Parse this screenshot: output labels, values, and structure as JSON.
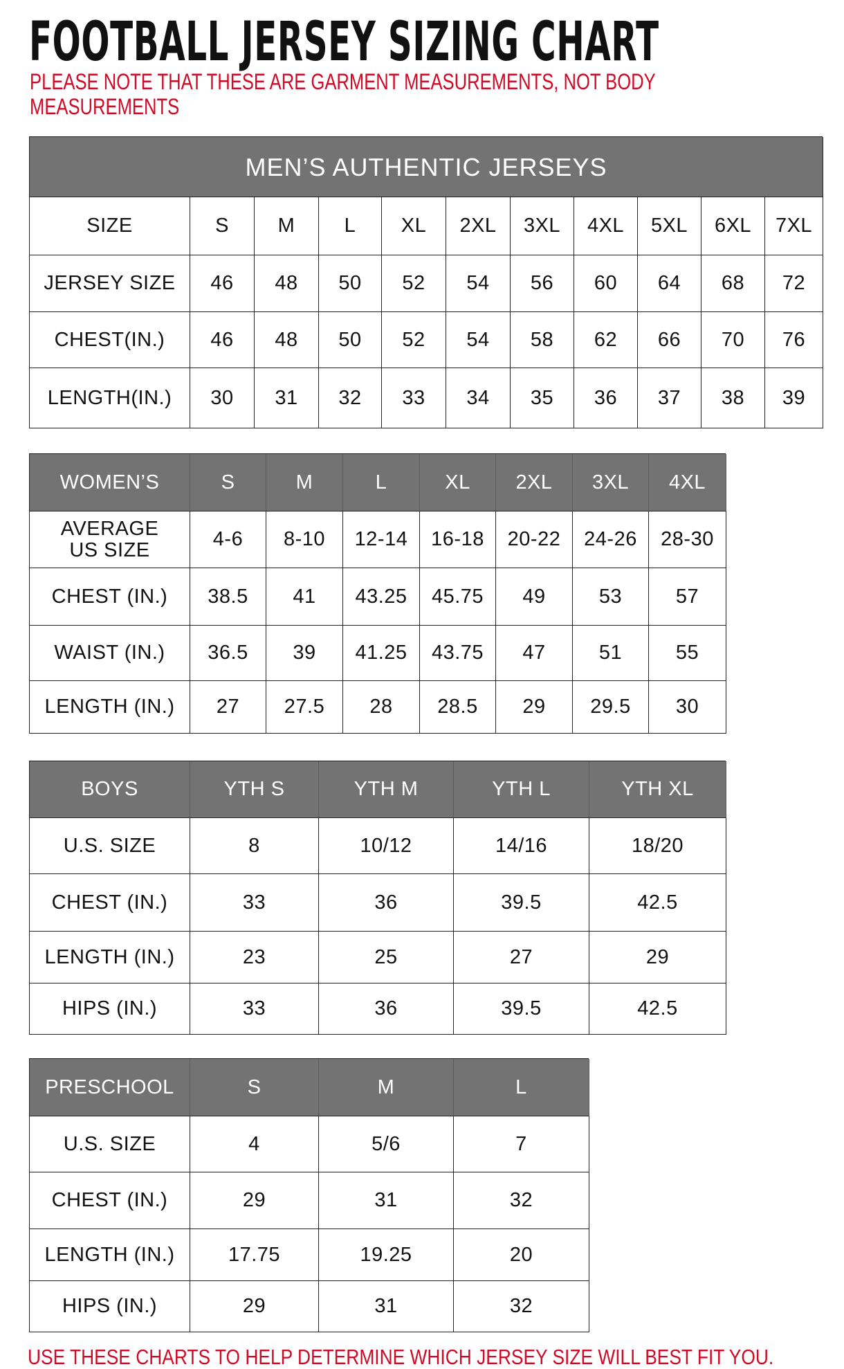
{
  "title": "FOOTBALL JERSEY SIZING CHART",
  "note": "PLEASE NOTE THAT THESE ARE GARMENT MEASUREMENTS, NOT BODY MEASUREMENTS",
  "footer": "USE THESE CHARTS TO HELP DETERMINE WHICH JERSEY SIZE WILL BEST FIT YOU.",
  "colors": {
    "header_gray": "#737373",
    "note_red": "#cf0a26"
  },
  "tables": [
    {
      "banner": "MEN’S AUTHENTIC JERSEYS",
      "header": [
        "SIZE",
        "S",
        "M",
        "L",
        "XL",
        "2XL",
        "3XL",
        "4XL",
        "5XL",
        "6XL",
        "7XL"
      ],
      "rows": [
        [
          "JERSEY SIZE",
          "46",
          "48",
          "50",
          "52",
          "54",
          "56",
          "60",
          "64",
          "68",
          "72"
        ],
        [
          "CHEST(IN.)",
          "46",
          "48",
          "50",
          "52",
          "54",
          "58",
          "62",
          "66",
          "70",
          "76"
        ],
        [
          "LENGTH(IN.)",
          "30",
          "31",
          "32",
          "33",
          "34",
          "35",
          "36",
          "37",
          "38",
          "39"
        ]
      ]
    },
    {
      "header": [
        "WOMEN’S",
        "S",
        "M",
        "L",
        "XL",
        "2XL",
        "3XL",
        "4XL"
      ],
      "rows": [
        [
          "AVERAGE\nUS SIZE",
          "4-6",
          "8-10",
          "12-14",
          "16-18",
          "20-22",
          "24-26",
          "28-30"
        ],
        [
          "CHEST (IN.)",
          "38.5",
          "41",
          "43.25",
          "45.75",
          "49",
          "53",
          "57"
        ],
        [
          "WAIST (IN.)",
          "36.5",
          "39",
          "41.25",
          "43.75",
          "47",
          "51",
          "55"
        ],
        [
          "LENGTH (IN.)",
          "27",
          "27.5",
          "28",
          "28.5",
          "29",
          "29.5",
          "30"
        ]
      ]
    },
    {
      "header": [
        "BOYS",
        "YTH S",
        "YTH M",
        "YTH L",
        "YTH XL"
      ],
      "rows": [
        [
          "U.S. SIZE",
          "8",
          "10/12",
          "14/16",
          "18/20"
        ],
        [
          "CHEST (IN.)",
          "33",
          "36",
          "39.5",
          "42.5"
        ],
        [
          "LENGTH (IN.)",
          "23",
          "25",
          "27",
          "29"
        ],
        [
          "HIPS (IN.)",
          "33",
          "36",
          "39.5",
          "42.5"
        ]
      ]
    },
    {
      "header": [
        "PRESCHOOL",
        "S",
        "M",
        "L"
      ],
      "rows": [
        [
          "U.S. SIZE",
          "4",
          "5/6",
          "7"
        ],
        [
          "CHEST (IN.)",
          "29",
          "31",
          "32"
        ],
        [
          "LENGTH (IN.)",
          "17.75",
          "19.25",
          "20"
        ],
        [
          "HIPS (IN.)",
          "29",
          "31",
          "32"
        ]
      ]
    }
  ]
}
